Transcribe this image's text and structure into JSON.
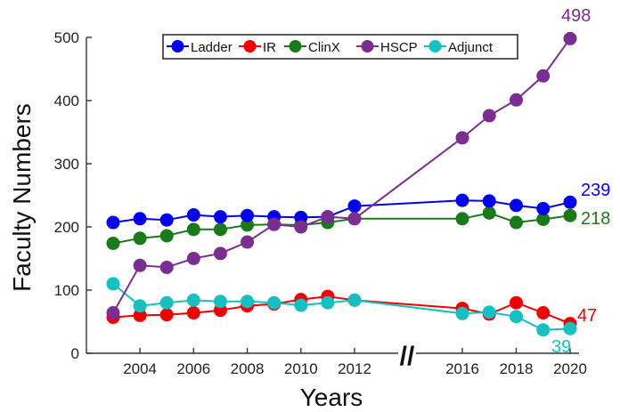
{
  "chart_data": {
    "type": "line",
    "xlabel": "Years",
    "ylabel": "Faculty Numbers",
    "xlim": [
      2002.7,
      2020.5
    ],
    "ylim": [
      0,
      500
    ],
    "y_ticks": [
      "0",
      "100",
      "200",
      "300",
      "400",
      "500"
    ],
    "x_ticks": [
      "2004",
      "2006",
      "2008",
      "2010",
      "2012",
      "2016",
      "2018",
      "2020"
    ],
    "x_tick_values": [
      2004,
      2006,
      2008,
      2010,
      2012,
      2016,
      2018,
      2020
    ],
    "axis_break_label": "//",
    "axis_break_after": 2012,
    "axis_break_before": 2016,
    "legend_position": "top-center",
    "series": [
      {
        "name": "Ladder",
        "color": "#0000ee",
        "x": [
          2003,
          2004,
          2005,
          2006,
          2007,
          2008,
          2009,
          2010,
          2011,
          2012,
          2016,
          2017,
          2018,
          2019,
          2020
        ],
        "values": [
          207,
          213,
          211,
          219,
          216,
          218,
          216,
          215,
          216,
          233,
          242,
          241,
          234,
          229,
          239
        ],
        "end_label": "239"
      },
      {
        "name": "IR",
        "color": "#ee0000",
        "x": [
          2003,
          2004,
          2005,
          2006,
          2007,
          2008,
          2009,
          2010,
          2011,
          2012,
          2016,
          2017,
          2018,
          2019,
          2020
        ],
        "values": [
          57,
          60,
          61,
          64,
          68,
          75,
          78,
          85,
          90,
          84,
          71,
          62,
          80,
          64,
          47
        ],
        "end_label": "47"
      },
      {
        "name": "ClinX",
        "color": "#1a7a1a",
        "x": [
          2003,
          2004,
          2005,
          2006,
          2007,
          2008,
          2009,
          2010,
          2011,
          2012,
          2016,
          2017,
          2018,
          2019,
          2020
        ],
        "values": [
          174,
          182,
          186,
          196,
          196,
          203,
          204,
          203,
          207,
          213,
          213,
          222,
          207,
          212,
          218
        ],
        "end_label": "218"
      },
      {
        "name": "HSCP",
        "color": "#7a2e8f",
        "x": [
          2003,
          2004,
          2005,
          2006,
          2007,
          2008,
          2009,
          2010,
          2011,
          2012,
          2016,
          2017,
          2018,
          2019,
          2020
        ],
        "values": [
          64,
          139,
          136,
          150,
          158,
          176,
          204,
          200,
          216,
          213,
          341,
          376,
          401,
          439,
          498
        ],
        "end_label": "498"
      },
      {
        "name": "Adjunct",
        "color": "#17c0c0",
        "x": [
          2003,
          2004,
          2005,
          2006,
          2007,
          2008,
          2009,
          2010,
          2011,
          2012,
          2016,
          2017,
          2018,
          2019,
          2020
        ],
        "values": [
          110,
          75,
          80,
          84,
          82,
          82,
          80,
          76,
          80,
          84,
          63,
          65,
          58,
          37,
          39
        ],
        "end_label": "39"
      }
    ]
  }
}
